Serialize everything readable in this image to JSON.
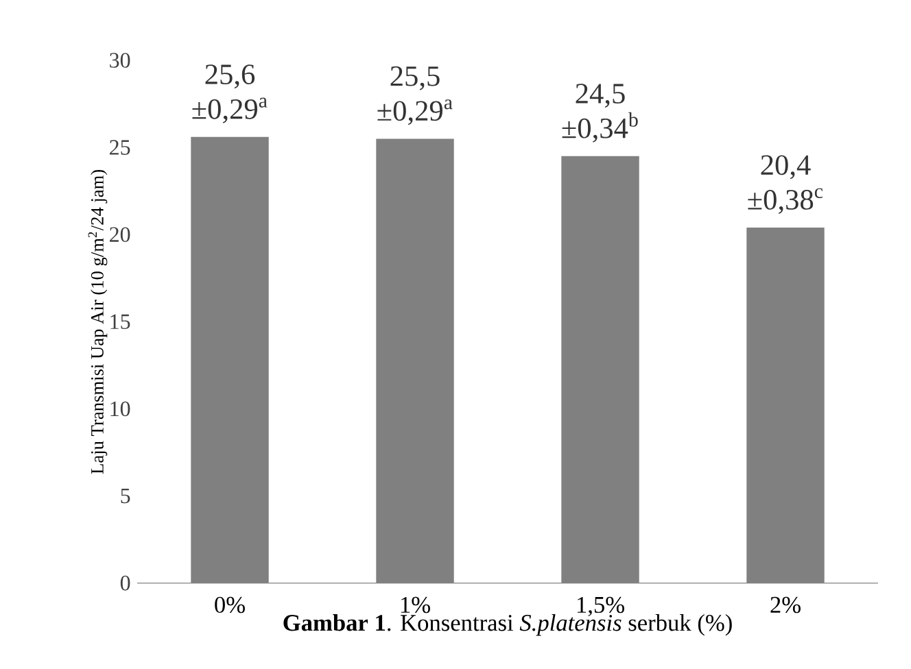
{
  "chart_data": {
    "type": "bar",
    "xlabel": "**Gambar 1**. Konsentrasi *S.platensis* serbuk (%)",
    "ylabel": "Laju Transmisi Uap Air (10 g/m$^{2}$/24 jam)",
    "categories": [
      "0%",
      "1%",
      "1,5%",
      "2%"
    ],
    "values": [
      25.6,
      25.5,
      24.5,
      20.4
    ],
    "value_labels": [
      "25,6 ±0,29$^{a}$",
      "25,5 ±0,29$^{a}$",
      "24,5 ±0,34$^{b}$",
      "20,4 ±0,38$^{c}$"
    ],
    "color": "#808080",
    "ylim": [
      0,
      30
    ],
    "yticks": [
      0,
      5,
      10,
      15,
      20,
      25,
      30
    ],
    "grid": false
  }
}
